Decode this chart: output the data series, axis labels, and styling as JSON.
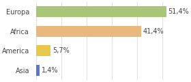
{
  "categories": [
    "Europa",
    "Africa",
    "America",
    "Asia"
  ],
  "values": [
    51.4,
    41.4,
    5.7,
    1.4
  ],
  "labels": [
    "51,4%",
    "41,4%",
    "5,7%",
    "1,4%"
  ],
  "bar_colors": [
    "#a8c57a",
    "#e8b87e",
    "#e8c84a",
    "#5577cc"
  ],
  "background_color": "#ffffff",
  "grid_color": "#e0e0e0",
  "xlim": [
    0,
    58
  ],
  "bar_height": 0.55,
  "fontsize_cat": 7.0,
  "fontsize_val": 7.0,
  "text_color": "#444444"
}
